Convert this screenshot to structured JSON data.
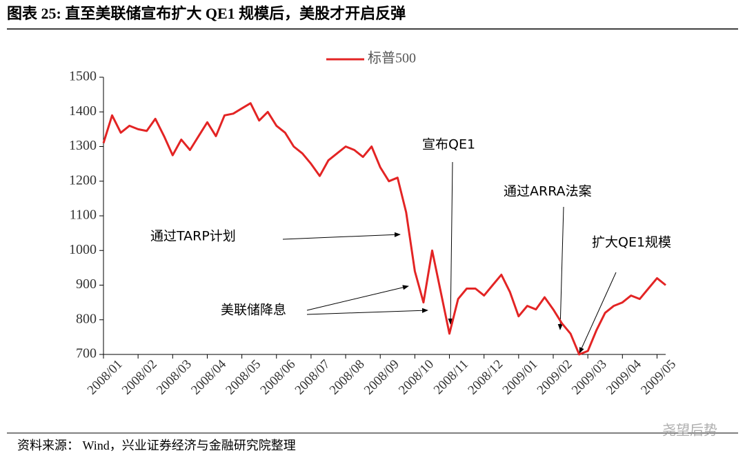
{
  "chart_data": {
    "type": "line",
    "title": "图表 25:  直至美联储宣布扩大 QE1 规模后，美股才开启反弹",
    "source": "资料来源：  Wind，兴业证券经济与金融研究院整理",
    "watermark": "尧望后势",
    "categories": [
      "2008/01",
      null,
      null,
      null,
      "2008/02",
      null,
      null,
      null,
      "2008/03",
      null,
      null,
      null,
      "2008/04",
      null,
      null,
      null,
      "2008/05",
      null,
      null,
      null,
      "2008/06",
      null,
      null,
      null,
      "2008/07",
      null,
      null,
      null,
      "2008/08",
      null,
      null,
      null,
      "2008/09",
      null,
      null,
      null,
      "2008/10",
      null,
      null,
      null,
      "2008/11",
      null,
      null,
      null,
      "2008/12",
      null,
      null,
      null,
      "2009/01",
      null,
      null,
      null,
      "2009/02",
      null,
      null,
      null,
      "2009/03",
      null,
      null,
      null,
      "2009/04",
      null,
      null,
      null,
      "2009/05",
      null
    ],
    "series": [
      {
        "name": "标普500",
        "color": "#e32424",
        "values": [
          1310,
          1390,
          1340,
          1360,
          1350,
          1345,
          1380,
          1330,
          1275,
          1320,
          1290,
          1330,
          1370,
          1330,
          1390,
          1395,
          1410,
          1425,
          1375,
          1400,
          1360,
          1340,
          1300,
          1280,
          1250,
          1215,
          1260,
          1280,
          1300,
          1290,
          1270,
          1300,
          1240,
          1200,
          1210,
          1110,
          940,
          850,
          1000,
          880,
          760,
          860,
          890,
          890,
          870,
          900,
          930,
          880,
          810,
          840,
          830,
          865,
          830,
          790,
          760,
          700,
          710,
          770,
          820,
          840,
          850,
          870,
          860,
          890,
          920,
          900
        ]
      }
    ],
    "ylim": [
      700,
      1500
    ],
    "yticks": [
      700,
      800,
      900,
      1000,
      1100,
      1200,
      1300,
      1400,
      1500
    ],
    "legend": "top",
    "annotations": [
      "通过TARP计划",
      "美联储降息",
      "宣布QE1",
      "通过ARRA法案",
      "扩大QE1规模"
    ]
  }
}
